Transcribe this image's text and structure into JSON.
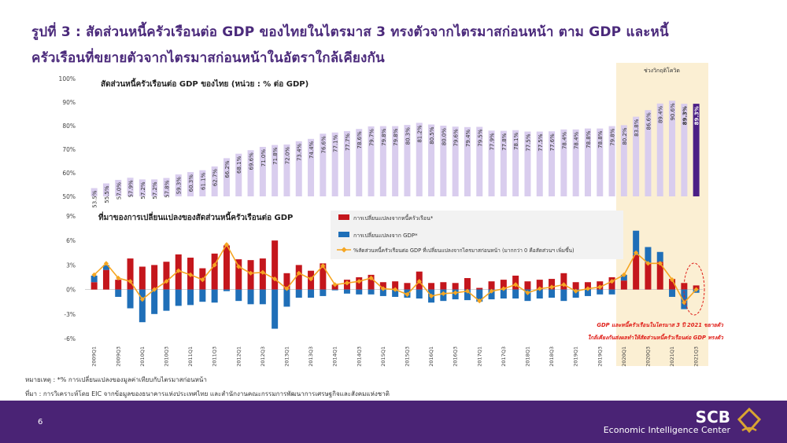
{
  "title_line1": "รูปที่ 3 : สัดส่วนหนี้ครัวเรือนต่อ GDP ของไทยในไตรมาส 3 ทรงตัวจากไตรมาสก่อนหน้า ตาม GDP และหนี้",
  "title_line2": "ครัวเรือนที่ขยายตัวจากไตรมาสก่อนหน้าในอัตราใกล้เคียงกัน",
  "covid_label": "ช่วงวิกฤติโควิด",
  "covid_note_line1": "GDP และหนี้ครัวเรือนในไตรมาส 3 ปี 2021 ขยายตัว",
  "covid_note_line2": "ใกล้เคียงกันส่งผลทำให้สัดส่วนหนี้ครัวเรือนต่อ GDP ทรงตัว",
  "note_line1": "หมายเหตุ : *% การเปลี่ยนแปลงของมูลค่าเทียบกับไตรมาสก่อนหน้า",
  "note_line2": "ที่มา : การวิเคราะห์โดย EIC จากข้อมูลของธนาคารแห่งประเทศไทย และสำนักงานคณะกรรมการพัฒนาการเศรษฐกิจและสังคมแห่งชาติ",
  "page_number": "6",
  "brand_name": "SCB",
  "brand_subtitle": "Economic Intelligence Center",
  "colors": {
    "title": "#4b2a7b",
    "ratio_bar": "#d9cdee",
    "ratio_bar_last": "#4b1f86",
    "debt": "#c4161c",
    "gdp": "#1f6fb8",
    "ratio_change_line": "#f5a623",
    "covid_band": "#fbefd3"
  },
  "chart_data": [
    {
      "type": "bar",
      "title": "สัดส่วนหนี้ครัวเรือนต่อ GDP ของไทย (หน่วย : % ต่อ GDP)",
      "ylim": [
        50,
        100
      ],
      "yticks": [
        "50%",
        "60%",
        "70%",
        "80%",
        "90%",
        "100%"
      ],
      "categories": [
        "2009Q1",
        "2009Q2",
        "2009Q3",
        "2009Q4",
        "2010Q1",
        "2010Q2",
        "2010Q3",
        "2010Q4",
        "2011Q1",
        "2011Q2",
        "2011Q3",
        "2011Q4",
        "2012Q1",
        "2012Q2",
        "2012Q3",
        "2012Q4",
        "2013Q1",
        "2013Q2",
        "2013Q3",
        "2013Q4",
        "2014Q1",
        "2014Q2",
        "2014Q3",
        "2014Q4",
        "2015Q1",
        "2015Q2",
        "2015Q3",
        "2015Q4",
        "2016Q1",
        "2016Q2",
        "2016Q3",
        "2016Q4",
        "2017Q1",
        "2017Q2",
        "2017Q3",
        "2017Q4",
        "2018Q1",
        "2018Q2",
        "2018Q3",
        "2018Q4",
        "2019Q1",
        "2019Q2",
        "2019Q3",
        "2019Q4",
        "2020Q1",
        "2020Q2",
        "2020Q3",
        "2020Q4",
        "2021Q1",
        "2021Q2",
        "2021Q3"
      ],
      "values": [
        53.5,
        55.5,
        57.0,
        57.9,
        57.2,
        57.2,
        57.8,
        59.3,
        60.3,
        61.1,
        62.7,
        66.2,
        68.1,
        69.6,
        71.0,
        71.8,
        72.0,
        73.4,
        74.4,
        76.6,
        77.1,
        77.7,
        78.6,
        79.7,
        79.8,
        79.8,
        80.3,
        81.2,
        80.5,
        80.0,
        79.6,
        79.4,
        79.5,
        77.9,
        77.8,
        78.1,
        77.5,
        77.5,
        77.6,
        78.4,
        78.4,
        78.8,
        78.8,
        79.8,
        80.2,
        83.8,
        86.6,
        89.4,
        90.6,
        89.3,
        89.3
      ],
      "labels": [
        "53.5%",
        "55.5%",
        "57.0%",
        "57.9%",
        "57.2%",
        "57.2%",
        "57.8%",
        "59.3%",
        "60.3%",
        "61.1%",
        "62.7%",
        "66.2%",
        "68.1%",
        "69.6%",
        "71.0%",
        "71.8%",
        "72.0%",
        "73.4%",
        "74.4%",
        "76.6%",
        "77.1%",
        "77.7%",
        "78.6%",
        "79.7%",
        "79.8%",
        "79.8%",
        "80.3%",
        "81.2%",
        "80.5%",
        "80.0%",
        "79.6%",
        "79.4%",
        "79.5%",
        "77.9%",
        "77.8%",
        "78.1%",
        "77.5%",
        "77.5%",
        "77.6%",
        "78.4%",
        "78.4%",
        "78.8%",
        "78.8%",
        "79.8%",
        "80.2%",
        "83.8%",
        "86.6%",
        "89.4%",
        "90.6%",
        "89.3%",
        "89.3%"
      ]
    },
    {
      "type": "bar",
      "title": "ที่มาของการเปลี่ยนแปลงของสัดส่วนหนี้ครัวเรือนต่อ GDP",
      "ylim": [
        -6,
        9
      ],
      "yticks": [
        "-6%",
        "-3%",
        "0%",
        "3%",
        "6%",
        "9%"
      ],
      "xticks_shown": [
        "2009Q1",
        "2009Q3",
        "2010Q1",
        "2010Q3",
        "2011Q1",
        "2011Q3",
        "2012Q1",
        "2012Q3",
        "2013Q1",
        "2013Q3",
        "2014Q1",
        "2014Q3",
        "2015Q1",
        "2015Q3",
        "2016Q1",
        "2016Q3",
        "2017Q1",
        "2017Q3",
        "2018Q1",
        "2018Q3",
        "2019Q1",
        "2019Q3",
        "2020Q1",
        "2020Q3",
        "2021Q1",
        "2021Q3"
      ],
      "legend": [
        "การเปลี่ยนแปลงจากหนี้ครัวเรือน*",
        "การเปลี่ยนแปลงจาก GDP*",
        "%สัดส่วนหนี้ครัวเรือนต่อ GDP ที่เปลี่ยนแปลงจากไตรมาสก่อนหน้า (มากกว่า 0 คือสัดส่วนฯ เพิ่มขึ้น)"
      ],
      "series": [
        {
          "name": "การเปลี่ยนแปลงจากหนี้ครัวเรือน*",
          "type": "bar",
          "values": [
            0.9,
            2.4,
            1.2,
            3.8,
            2.8,
            3.0,
            3.4,
            4.3,
            3.9,
            2.6,
            4.4,
            5.4,
            3.7,
            3.6,
            3.8,
            6.0,
            2.0,
            3.0,
            2.3,
            3.2,
            0.6,
            1.2,
            1.5,
            1.8,
            0.9,
            1.0,
            0.8,
            2.2,
            0.8,
            0.9,
            0.8,
            1.4,
            0.2,
            1.0,
            1.2,
            1.7,
            1.0,
            1.2,
            1.3,
            2.0,
            0.9,
            0.9,
            1.0,
            1.5,
            1.1,
            4.2,
            3.3,
            3.4,
            1.3,
            0.8,
            0.5
          ]
        },
        {
          "name": "การเปลี่ยนแปลงจาก GDP*",
          "type": "bar",
          "values": [
            0.8,
            0.6,
            -0.9,
            -2.3,
            -4.0,
            -3.0,
            -2.6,
            -2.0,
            -1.9,
            -1.5,
            -1.6,
            -0.2,
            -1.4,
            -1.8,
            -1.8,
            -4.8,
            -2.1,
            -1.0,
            -1.0,
            -0.8,
            -0.1,
            -0.5,
            -0.6,
            -0.6,
            -0.8,
            -0.9,
            -1.0,
            -1.1,
            -1.6,
            -1.4,
            -1.2,
            -1.3,
            -1.5,
            -1.2,
            -1.1,
            -1.1,
            -1.4,
            -1.1,
            -1.0,
            -1.4,
            -1.0,
            -0.8,
            -0.6,
            -0.6,
            0.7,
            3.0,
            1.9,
            1.2,
            -0.9,
            -2.4,
            -0.4
          ]
        },
        {
          "name": "%สัดส่วนหนี้ครัวเรือนต่อ GDP ที่เปลี่ยนแปลงจากไตรมาสก่อนหน้า (มากกว่า 0 คือสัดส่วนฯ เพิ่มขึ้น)",
          "type": "line",
          "values": [
            1.8,
            3.2,
            1.4,
            1.0,
            -1.2,
            0.0,
            1.0,
            2.3,
            1.8,
            1.2,
            3.0,
            5.5,
            2.8,
            2.0,
            2.1,
            1.3,
            0.1,
            2.0,
            1.3,
            2.9,
            0.6,
            0.8,
            1.0,
            1.4,
            0.1,
            0.0,
            -0.6,
            1.0,
            -0.8,
            -0.5,
            -0.4,
            -0.2,
            -1.4,
            -0.2,
            0.1,
            0.6,
            -0.4,
            0.1,
            0.3,
            0.6,
            -0.2,
            0.1,
            0.3,
            1.0,
            1.8,
            4.5,
            3.2,
            3.2,
            1.2,
            -1.6,
            0.0
          ]
        }
      ]
    }
  ]
}
